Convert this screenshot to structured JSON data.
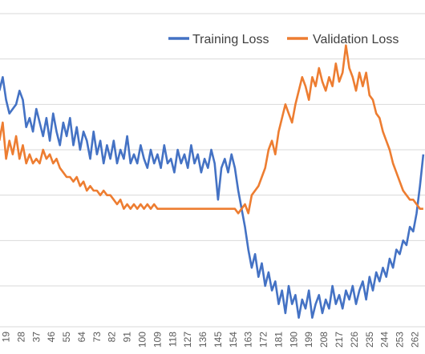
{
  "chart_data": {
    "type": "line",
    "title": "",
    "xlabel": "",
    "ylabel": "",
    "xlim": [
      15.4,
      268
    ],
    "ylim": [
      0,
      7.2
    ],
    "grid": "horizontal",
    "legend_position": "top-right",
    "x_ticks": [
      19,
      28,
      37,
      46,
      55,
      64,
      73,
      82,
      91,
      100,
      109,
      118,
      127,
      136,
      145,
      154,
      163,
      172,
      181,
      190,
      199,
      208,
      217,
      226,
      235,
      244,
      253,
      262
    ],
    "gridlines": [
      0.9,
      1.9,
      2.9,
      3.9,
      4.9,
      5.9,
      6.9
    ],
    "series": [
      {
        "name": "Training Loss",
        "color": "#4472C4",
        "x": [
          15,
          17,
          19,
          21,
          23,
          25,
          27,
          29,
          31,
          33,
          35,
          37,
          39,
          41,
          43,
          45,
          47,
          49,
          51,
          53,
          55,
          57,
          59,
          61,
          63,
          65,
          67,
          69,
          71,
          73,
          75,
          77,
          79,
          81,
          83,
          85,
          87,
          89,
          91,
          93,
          95,
          97,
          99,
          101,
          103,
          105,
          107,
          109,
          111,
          113,
          115,
          117,
          119,
          121,
          123,
          125,
          127,
          129,
          131,
          133,
          135,
          137,
          139,
          141,
          143,
          145,
          147,
          149,
          151,
          153,
          155,
          157,
          159,
          161,
          163,
          165,
          167,
          169,
          171,
          173,
          175,
          177,
          179,
          181,
          183,
          185,
          187,
          189,
          191,
          193,
          195,
          197,
          199,
          201,
          203,
          205,
          207,
          209,
          211,
          213,
          215,
          217,
          219,
          221,
          223,
          225,
          227,
          229,
          231,
          233,
          235,
          237,
          239,
          241,
          243,
          245,
          247,
          249,
          251,
          253,
          255,
          257,
          259,
          261,
          263,
          265,
          267
        ],
        "y": [
          5.2,
          5.5,
          5.0,
          4.7,
          4.8,
          4.9,
          5.2,
          5.0,
          4.4,
          4.6,
          4.3,
          4.8,
          4.5,
          4.2,
          4.6,
          4.1,
          4.7,
          4.3,
          4.0,
          4.5,
          4.2,
          4.6,
          4.0,
          4.4,
          3.9,
          4.3,
          4.1,
          3.7,
          4.3,
          3.8,
          4.1,
          3.6,
          4.0,
          3.7,
          4.1,
          3.6,
          3.9,
          3.7,
          4.2,
          3.6,
          3.8,
          3.6,
          4.0,
          3.7,
          3.5,
          3.9,
          3.6,
          3.8,
          3.5,
          4.0,
          3.6,
          3.7,
          3.4,
          3.9,
          3.6,
          3.8,
          3.5,
          4.0,
          3.6,
          3.8,
          3.4,
          3.7,
          3.5,
          3.9,
          3.6,
          2.8,
          3.5,
          3.7,
          3.4,
          3.8,
          3.5,
          3.0,
          2.6,
          2.2,
          1.7,
          1.3,
          1.6,
          1.1,
          1.4,
          0.9,
          1.2,
          0.8,
          1.0,
          0.5,
          0.8,
          0.3,
          0.9,
          0.5,
          0.7,
          0.2,
          0.6,
          0.4,
          0.8,
          0.2,
          0.5,
          0.7,
          0.3,
          0.6,
          0.4,
          0.9,
          0.5,
          0.7,
          0.4,
          0.8,
          0.6,
          0.9,
          0.5,
          0.8,
          1.0,
          0.6,
          1.1,
          0.8,
          1.2,
          1.0,
          1.3,
          1.1,
          1.5,
          1.3,
          1.7,
          1.6,
          1.9,
          1.8,
          2.2,
          2.1,
          2.5,
          3.1,
          3.8
        ]
      },
      {
        "name": "Validation Loss",
        "color": "#ED7D31",
        "x": [
          15,
          17,
          19,
          21,
          23,
          25,
          27,
          29,
          31,
          33,
          35,
          37,
          39,
          41,
          43,
          45,
          47,
          49,
          51,
          53,
          55,
          57,
          59,
          61,
          63,
          65,
          67,
          69,
          71,
          73,
          75,
          77,
          79,
          81,
          83,
          85,
          87,
          89,
          91,
          93,
          95,
          97,
          99,
          101,
          103,
          105,
          107,
          109,
          111,
          113,
          115,
          117,
          119,
          121,
          123,
          125,
          127,
          129,
          131,
          133,
          135,
          137,
          139,
          141,
          143,
          145,
          147,
          149,
          151,
          153,
          155,
          157,
          159,
          161,
          163,
          165,
          167,
          169,
          171,
          173,
          175,
          177,
          179,
          181,
          183,
          185,
          187,
          189,
          191,
          193,
          195,
          197,
          199,
          201,
          203,
          205,
          207,
          209,
          211,
          213,
          215,
          217,
          219,
          221,
          223,
          225,
          227,
          229,
          231,
          233,
          235,
          237,
          239,
          241,
          243,
          245,
          247,
          249,
          251,
          253,
          255,
          257,
          259,
          261,
          263,
          265,
          267
        ],
        "y": [
          4.1,
          4.5,
          3.7,
          4.1,
          3.8,
          4.2,
          3.7,
          4.0,
          3.6,
          3.8,
          3.6,
          3.7,
          3.6,
          3.9,
          3.7,
          3.8,
          3.6,
          3.7,
          3.5,
          3.4,
          3.3,
          3.3,
          3.2,
          3.3,
          3.1,
          3.2,
          3.0,
          3.1,
          3.0,
          3.0,
          2.9,
          3.0,
          2.9,
          2.9,
          2.8,
          2.7,
          2.8,
          2.6,
          2.7,
          2.6,
          2.7,
          2.6,
          2.7,
          2.6,
          2.7,
          2.6,
          2.7,
          2.6,
          2.6,
          2.6,
          2.6,
          2.6,
          2.6,
          2.6,
          2.6,
          2.6,
          2.6,
          2.6,
          2.6,
          2.6,
          2.6,
          2.6,
          2.6,
          2.6,
          2.6,
          2.6,
          2.6,
          2.6,
          2.6,
          2.6,
          2.6,
          2.5,
          2.6,
          2.7,
          2.5,
          2.9,
          3.0,
          3.1,
          3.3,
          3.5,
          3.9,
          4.1,
          3.8,
          4.3,
          4.6,
          4.9,
          4.7,
          4.5,
          4.9,
          5.2,
          5.5,
          5.3,
          5.0,
          5.5,
          5.3,
          5.7,
          5.4,
          5.2,
          5.5,
          5.3,
          5.8,
          5.4,
          5.6,
          6.2,
          5.7,
          5.5,
          5.2,
          5.6,
          5.3,
          5.6,
          5.1,
          5.0,
          4.7,
          4.6,
          4.3,
          4.1,
          3.9,
          3.6,
          3.4,
          3.2,
          3.0,
          2.9,
          2.8,
          2.8,
          2.7,
          2.6,
          2.6
        ]
      }
    ]
  }
}
